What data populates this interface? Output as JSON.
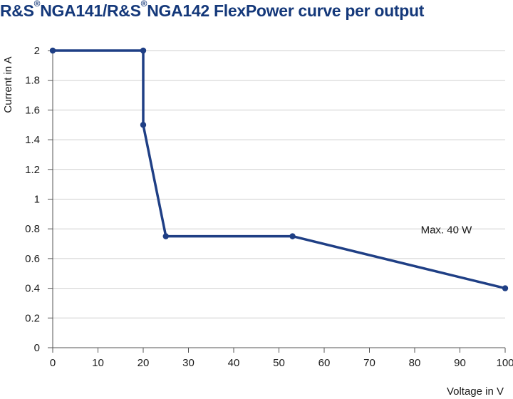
{
  "title": {
    "brand1": "R&S",
    "reg1": "®",
    "model1": "NGA141/",
    "brand2": "R&S",
    "reg2": "®",
    "rest": "NGA142 FlexPower curve per output"
  },
  "chart_data": {
    "type": "line",
    "title": "R&S®NGA141/R&S®NGA142 FlexPower curve per output",
    "xlabel": "Voltage in V",
    "ylabel": "Current in A",
    "xlim": [
      0,
      100
    ],
    "ylim": [
      0,
      2
    ],
    "xticks": [
      0,
      10,
      20,
      30,
      40,
      50,
      60,
      70,
      80,
      90,
      100
    ],
    "xtick_labels": [
      "0",
      "10",
      "20",
      "30",
      "40",
      "50",
      "60",
      "70",
      "80",
      "90",
      "100"
    ],
    "yticks": [
      0,
      0.2,
      0.4,
      0.6,
      0.8,
      1,
      1.2,
      1.4,
      1.6,
      1.8,
      2
    ],
    "ytick_labels": [
      "0",
      "0.2",
      "0.4",
      "0.6",
      "0.8",
      "1",
      "1.2",
      "1.4",
      "1.6",
      "1.8",
      "2"
    ],
    "grid": "horizontal",
    "line_color": "#1f3f85",
    "series": [
      {
        "x": [
          0,
          20,
          20,
          25,
          53,
          100
        ],
        "y": [
          2,
          2,
          1.5,
          0.75,
          0.75,
          0.4
        ]
      }
    ],
    "annotations": [
      {
        "text": "Max. 40 W",
        "x": 87,
        "y": 0.77
      }
    ]
  }
}
